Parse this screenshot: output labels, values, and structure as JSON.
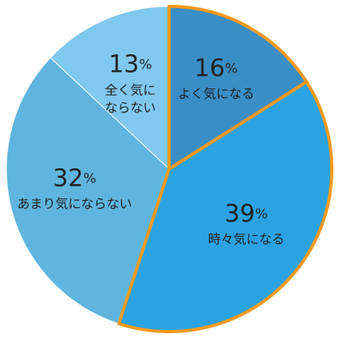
{
  "chart_data": {
    "type": "pie",
    "categories": [
      "よく気になる",
      "時々気になる",
      "あまり気にならない",
      "全く気に\nならない"
    ],
    "values": [
      16,
      39,
      32,
      13
    ],
    "value_labels": [
      "16%",
      "39%",
      "32%",
      "13%"
    ],
    "colors": [
      "#3a8ec6",
      "#2ba3e3",
      "#5fb5df",
      "#80c8ef"
    ],
    "highlighted": [
      0,
      1
    ],
    "highlight_color": "#f29a1f"
  }
}
